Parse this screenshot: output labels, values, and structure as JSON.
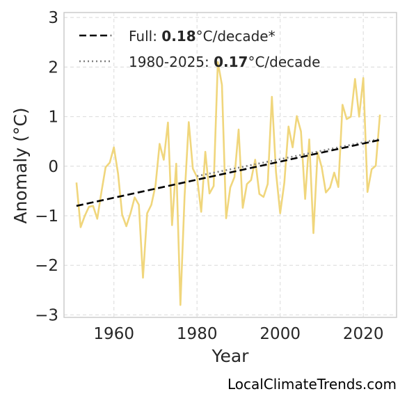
{
  "chart_data": {
    "type": "line",
    "ylabel": "Anomaly (°C)",
    "xlabel": "Year",
    "xlim": [
      1948,
      2028
    ],
    "ylim": [
      -3.05,
      3.1
    ],
    "xticks": [
      1960,
      1980,
      2000,
      2020
    ],
    "yticks": [
      3,
      2,
      1,
      0,
      -1,
      -2,
      -3
    ],
    "ytick_labels": [
      "3",
      "2",
      "1",
      "0",
      "−1",
      "−2",
      "−3"
    ],
    "grid": true,
    "legend_position": "top-left",
    "legend": [
      {
        "prefix": "Full: ",
        "value": "0.18",
        "suffix": "°C/decade*"
      },
      {
        "prefix": "1980-2025: ",
        "value": "0.17",
        "suffix": "°C/decade"
      }
    ],
    "series": [
      {
        "type": "line",
        "color": "#f0d67c",
        "x": [
          1951,
          1952,
          1953,
          1954,
          1955,
          1956,
          1957,
          1958,
          1959,
          1960,
          1961,
          1962,
          1963,
          1964,
          1965,
          1966,
          1967,
          1968,
          1969,
          1970,
          1971,
          1972,
          1973,
          1974,
          1975,
          1976,
          1977,
          1978,
          1979,
          1980,
          1981,
          1982,
          1983,
          1984,
          1985,
          1986,
          1987,
          1988,
          1989,
          1990,
          1991,
          1992,
          1993,
          1994,
          1995,
          1996,
          1997,
          1998,
          1999,
          2000,
          2001,
          2002,
          2003,
          2004,
          2005,
          2006,
          2007,
          2008,
          2009,
          2010,
          2011,
          2012,
          2013,
          2014,
          2015,
          2016,
          2017,
          2018,
          2019,
          2020,
          2021,
          2022,
          2023,
          2024
        ],
        "y": [
          -0.33,
          -1.23,
          -1.0,
          -0.82,
          -0.8,
          -1.06,
          -0.52,
          -0.02,
          0.07,
          0.38,
          -0.15,
          -0.98,
          -1.21,
          -0.95,
          -0.63,
          -0.78,
          -2.25,
          -0.95,
          -0.78,
          -0.39,
          0.45,
          0.13,
          0.88,
          -1.19,
          0.05,
          -2.8,
          -0.61,
          0.89,
          -0.05,
          -0.22,
          -0.92,
          0.29,
          -0.55,
          -0.4,
          2.1,
          1.64,
          -1.05,
          -0.43,
          -0.22,
          0.74,
          -0.84,
          -0.36,
          -0.28,
          0.13,
          -0.56,
          -0.62,
          -0.36,
          1.4,
          -0.12,
          -0.95,
          -0.33,
          0.8,
          0.38,
          1.01,
          0.7,
          -0.66,
          0.54,
          -1.35,
          0.28,
          -0.02,
          -0.53,
          -0.43,
          -0.13,
          -0.42,
          1.24,
          0.95,
          1.0,
          1.76,
          1.0,
          1.78,
          -0.52,
          -0.06,
          0.01,
          1.04
        ]
      },
      {
        "type": "trend",
        "style": "dashed",
        "color": "#000000",
        "x": [
          1951,
          2024
        ],
        "y": [
          -0.8,
          0.53
        ]
      },
      {
        "type": "trend",
        "style": "dotted",
        "color": "#7f7f7f",
        "x": [
          1980,
          2024
        ],
        "y": [
          -0.2,
          0.55
        ]
      }
    ]
  },
  "credit": "LocalClimateTrends.com"
}
